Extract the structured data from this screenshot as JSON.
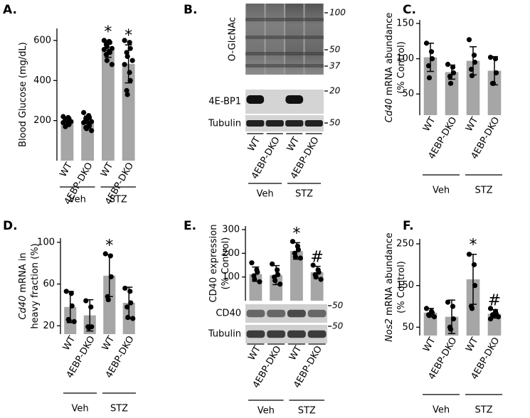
{
  "chart_data": [
    {
      "type": "bar",
      "panel": "A.",
      "color": "#a6a6a6",
      "ylabel": [
        [
          {
            "text": "Blood Glucose (mg/dL)"
          }
        ]
      ],
      "ylim": [
        0,
        660
      ],
      "yticks": [
        200,
        400,
        600
      ],
      "categories": [
        "WT",
        "4EBP-DKO",
        "WT",
        "4EBP-DKO"
      ],
      "groups": [
        "Veh",
        "STZ"
      ],
      "values": [
        197,
        193,
        556,
        483
      ],
      "errors": [
        20,
        30,
        40,
        95
      ],
      "points": [
        [
          220,
          215,
          210,
          205,
          200,
          195,
          190,
          185,
          180,
          170
        ],
        [
          240,
          225,
          215,
          210,
          200,
          195,
          190,
          185,
          175,
          165,
          160,
          150
        ],
        [
          600,
          595,
          590,
          580,
          570,
          560,
          555,
          545,
          540,
          530,
          500,
          480
        ],
        [
          600,
          590,
          560,
          540,
          520,
          500,
          480,
          440,
          400,
          350,
          330
        ]
      ],
      "annotations": [
        null,
        null,
        "*",
        "*"
      ]
    },
    {
      "type": "bar",
      "panel": "C.",
      "color": "#a6a6a6",
      "ylabel": [
        [
          {
            "text": "Cd40",
            "italic": true
          },
          {
            "text": " mRNA abundance"
          }
        ],
        [
          {
            "text": "(% Control)"
          }
        ]
      ],
      "ylim": [
        20,
        155
      ],
      "yticks": [
        50,
        100,
        150
      ],
      "categories": [
        "WT",
        "4EBP-DKO",
        "WT",
        "4EBP-DKO"
      ],
      "groups": [
        "Veh",
        "STZ"
      ],
      "values": [
        102,
        81,
        97,
        83
      ],
      "errors": [
        20,
        10,
        20,
        20
      ],
      "points": [
        [
          122,
          110,
          100,
          90,
          73
        ],
        [
          92,
          88,
          80,
          75,
          65
        ],
        [
          127,
          105,
          95,
          85,
          76
        ],
        [
          102,
          100,
          80,
          65,
          65
        ]
      ],
      "annotations": [
        null,
        null,
        null,
        null
      ]
    },
    {
      "type": "bar",
      "panel": "D.",
      "color": "#a6a6a6",
      "ylabel": [
        [
          {
            "text": "Cd40",
            "italic": true
          },
          {
            "text": " mRNA in"
          }
        ],
        [
          {
            "text": "heavy fraction (%)"
          }
        ]
      ],
      "ylim": [
        12,
        104
      ],
      "yticks": [
        20,
        60,
        100
      ],
      "categories": [
        "WT",
        "4EBP-DKO",
        "WT",
        "4EBP-DKO"
      ],
      "groups": [
        "Veh",
        "STZ"
      ],
      "values": [
        38,
        30,
        68,
        42
      ],
      "errors": [
        15,
        15,
        20,
        15
      ],
      "points": [
        [
          53,
          51,
          39,
          26,
          25,
          24
        ],
        [
          44,
          38,
          19,
          19,
          18
        ],
        [
          89,
          87,
          67,
          48,
          45
        ],
        [
          56,
          53,
          42,
          38,
          28,
          27
        ]
      ],
      "annotations": [
        null,
        null,
        "*",
        null
      ]
    },
    {
      "type": "bar",
      "panel": "E.",
      "color": "#a6a6a6",
      "ylabel": [
        [
          {
            "text": "CD40 expression"
          }
        ],
        [
          {
            "text": "(% Control)"
          }
        ]
      ],
      "ylim": [
        0,
        315
      ],
      "yticks": [
        100,
        200,
        300
      ],
      "categories": [
        "WT",
        "4EBP-DKO",
        "WT",
        "4EBP-DKO"
      ],
      "groups": [
        "Veh",
        "STZ"
      ],
      "values": [
        112,
        108,
        210,
        120
      ],
      "errors": [
        30,
        40,
        35,
        25
      ],
      "points": [
        [
          160,
          130,
          120,
          105,
          90,
          80
        ],
        [
          155,
          130,
          110,
          100,
          85,
          70
        ],
        [
          250,
          230,
          215,
          200,
          185,
          180
        ],
        [
          150,
          130,
          120,
          110,
          100,
          90
        ]
      ],
      "annotations": [
        null,
        null,
        "*",
        "#"
      ],
      "blot": {
        "rows": [
          "CD40",
          "Tubulin"
        ],
        "markers": [
          50,
          50
        ]
      }
    },
    {
      "type": "bar",
      "panel": "F.",
      "color": "#a6a6a6",
      "ylabel": [
        [
          {
            "text": "Nos2",
            "italic": true
          },
          {
            "text": " mRNA abundance"
          }
        ],
        [
          {
            "text": "(% Control)"
          }
        ]
      ],
      "ylim": [
        30,
        262
      ],
      "yticks": [
        50,
        150,
        250
      ],
      "categories": [
        "WT",
        "4EBP-DKO",
        "WT",
        "4EBP-DKO"
      ],
      "groups": [
        "Veh",
        "STZ"
      ],
      "values": [
        85,
        75,
        165,
        82
      ],
      "errors": [
        10,
        40,
        60,
        10
      ],
      "points": [
        [
          95,
          88,
          85,
          80,
          78,
          75
        ],
        [
          110,
          100,
          70,
          50,
          45
        ],
        [
          225,
          200,
          150,
          100,
          95
        ],
        [
          95,
          88,
          82,
          80,
          77,
          75,
          70
        ]
      ],
      "annotations": [
        null,
        null,
        "*",
        "#"
      ]
    }
  ],
  "blot_b": {
    "panel": "B.",
    "rows": [
      "O-GlcNAc",
      "4E-BP1",
      "Tubulin"
    ],
    "markers": [
      100,
      50,
      37,
      20,
      50
    ],
    "categories": [
      "WT",
      "4EBP-DKO",
      "WT",
      "4EBP-DKO"
    ],
    "groups": [
      "Veh",
      "STZ"
    ]
  }
}
